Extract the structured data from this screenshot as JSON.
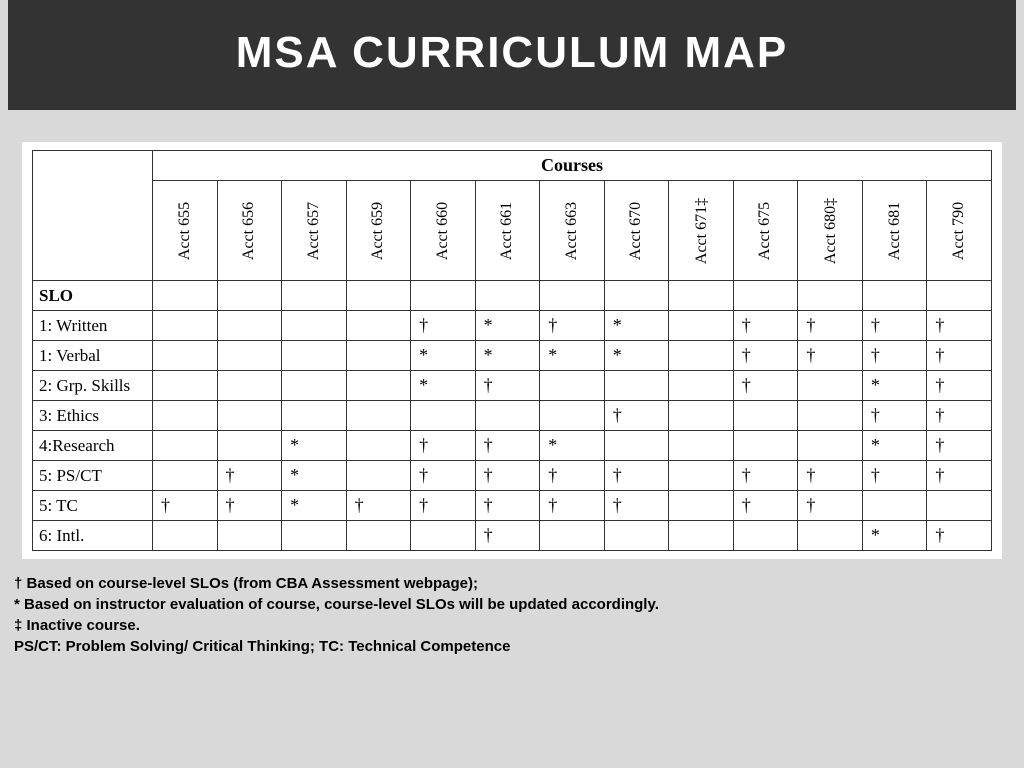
{
  "header": {
    "title": "MSA CURRICULUM MAP"
  },
  "table": {
    "type": "table",
    "courses_header": "Courses",
    "slo_header": "SLO",
    "first_col_width": 120,
    "border_color": "#333333",
    "bg_color": "#ffffff",
    "header_font": "Georgia",
    "body_font": "Georgia",
    "cell_fontsize": 17,
    "columns": [
      "Acct 655",
      "Acct 656",
      "Acct 657",
      "Acct 659",
      "Acct 660",
      "Acct 661",
      "Acct 663",
      "Acct 670",
      "Acct 671‡",
      "Acct 675",
      "Acct 680‡",
      "Acct 681",
      "Acct 790"
    ],
    "rows": [
      {
        "label": "1: Written",
        "cells": [
          "",
          "",
          "",
          "",
          "†",
          "*",
          "†",
          "*",
          "",
          "†",
          "†",
          "†",
          "†"
        ]
      },
      {
        "label": "1: Verbal",
        "cells": [
          "",
          "",
          "",
          "",
          "*",
          "*",
          "*",
          "*",
          "",
          "†",
          "†",
          "†",
          "†"
        ]
      },
      {
        "label": "2: Grp. Skills",
        "cells": [
          "",
          "",
          "",
          "",
          "*",
          "†",
          "",
          "",
          "",
          "†",
          "",
          "*",
          "†"
        ]
      },
      {
        "label": "3: Ethics",
        "cells": [
          "",
          "",
          "",
          "",
          "",
          "",
          "",
          "†",
          "",
          "",
          "",
          "†",
          "†"
        ]
      },
      {
        "label": "4:Research",
        "cells": [
          "",
          "",
          "*",
          "",
          "†",
          "†",
          "*",
          "",
          "",
          "",
          "",
          "*",
          "†"
        ]
      },
      {
        "label": "5: PS/CT",
        "cells": [
          "",
          "†",
          "*",
          "",
          "†",
          "†",
          "†",
          "†",
          "",
          "†",
          "†",
          "†",
          "†"
        ]
      },
      {
        "label": "5: TC",
        "cells": [
          "†",
          "†",
          "*",
          "†",
          "†",
          "†",
          "†",
          "†",
          "",
          "†",
          "†",
          "",
          ""
        ]
      },
      {
        "label": "6: Intl.",
        "cells": [
          "",
          "",
          "",
          "",
          "",
          "†",
          "",
          "",
          "",
          "",
          "",
          "*",
          "†"
        ]
      }
    ]
  },
  "footnotes": {
    "line1": "† Based on course-level SLOs (from CBA Assessment webpage);",
    "line2": "* Based on instructor evaluation of course, course-level SLOs will be updated accordingly.",
    "line3": "‡ Inactive course.",
    "line4": "PS/CT: Problem Solving/ Critical Thinking; TC: Technical Competence"
  },
  "colors": {
    "page_bg": "#d9d9d9",
    "header_bg": "#333333",
    "header_fg": "#ffffff",
    "table_bg": "#ffffff",
    "border": "#333333",
    "text": "#000000"
  },
  "typography": {
    "title_fontsize": 44,
    "title_family": "Arial",
    "title_weight": 700,
    "title_letter_spacing": 2,
    "footnote_fontsize": 15,
    "footnote_family": "Arial",
    "footnote_weight": 700
  }
}
